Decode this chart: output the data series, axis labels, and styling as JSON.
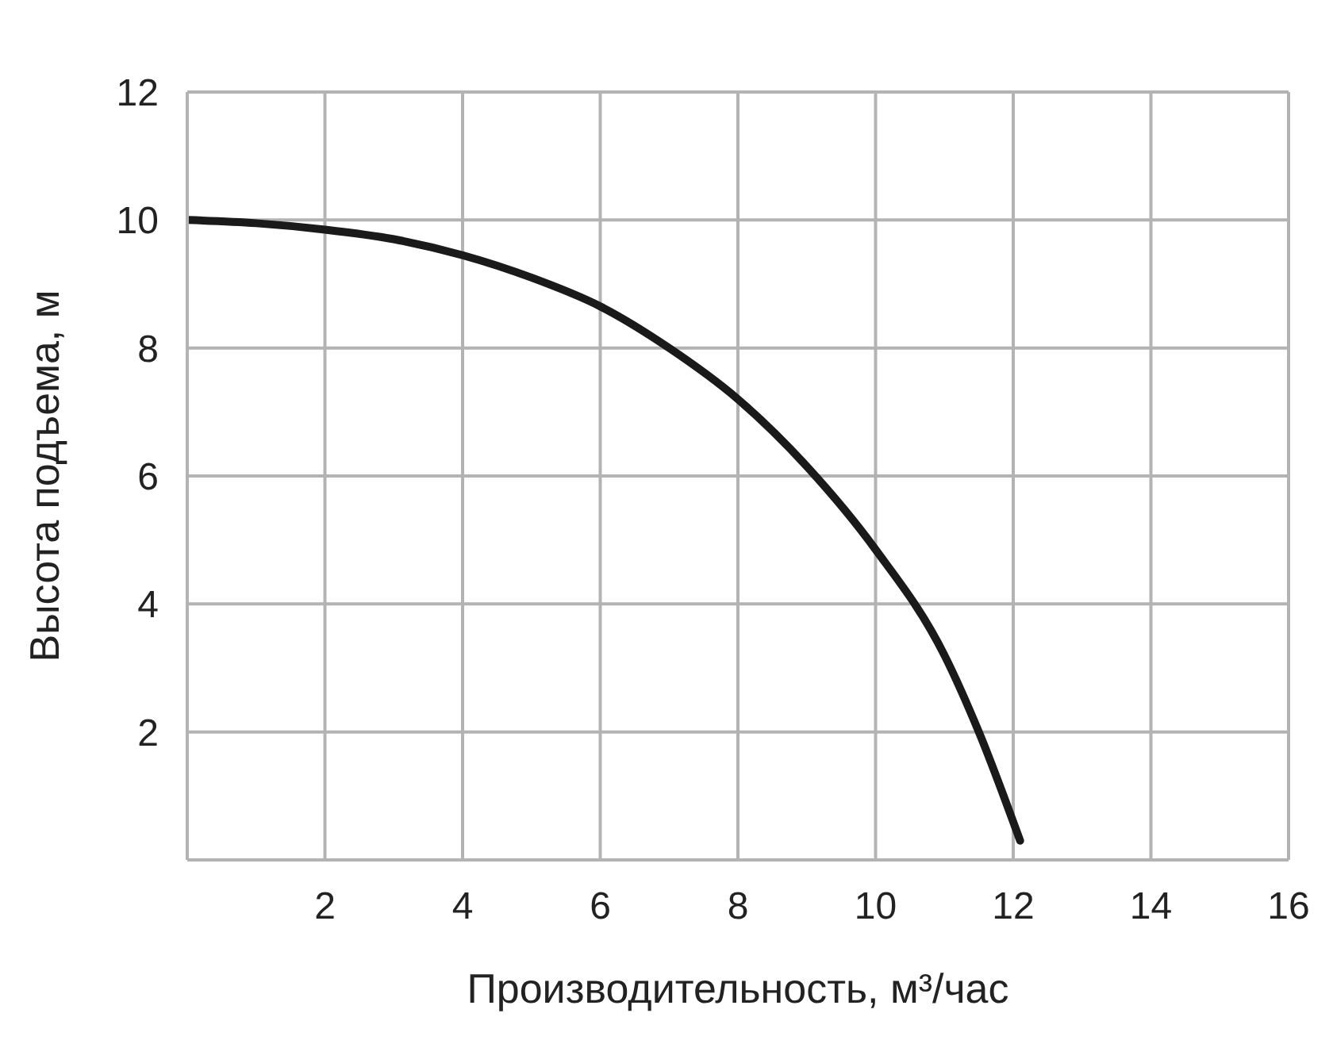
{
  "chart_data": {
    "type": "line",
    "xlabel": "Производительность, м³/час",
    "ylabel": "Высота подъема, м",
    "x": [
      0,
      1,
      2,
      3,
      4,
      5,
      6,
      7,
      8,
      9,
      10,
      11,
      11.5,
      12.1
    ],
    "series": [
      {
        "color": "#1a1a1a",
        "values": [
          10,
          9.95,
          9.85,
          9.7,
          9.45,
          9.1,
          8.65,
          8.0,
          7.2,
          6.15,
          4.85,
          3.2,
          2.0,
          0.3
        ]
      }
    ],
    "xlim": [
      0,
      16
    ],
    "xticks": [
      2,
      4,
      6,
      8,
      10,
      12,
      14,
      16
    ],
    "ylim": [
      0,
      12
    ],
    "yticks": [
      2,
      4,
      6,
      8,
      10,
      12
    ],
    "grid": true,
    "legend": false,
    "marker": "none",
    "line_style": "solid"
  }
}
